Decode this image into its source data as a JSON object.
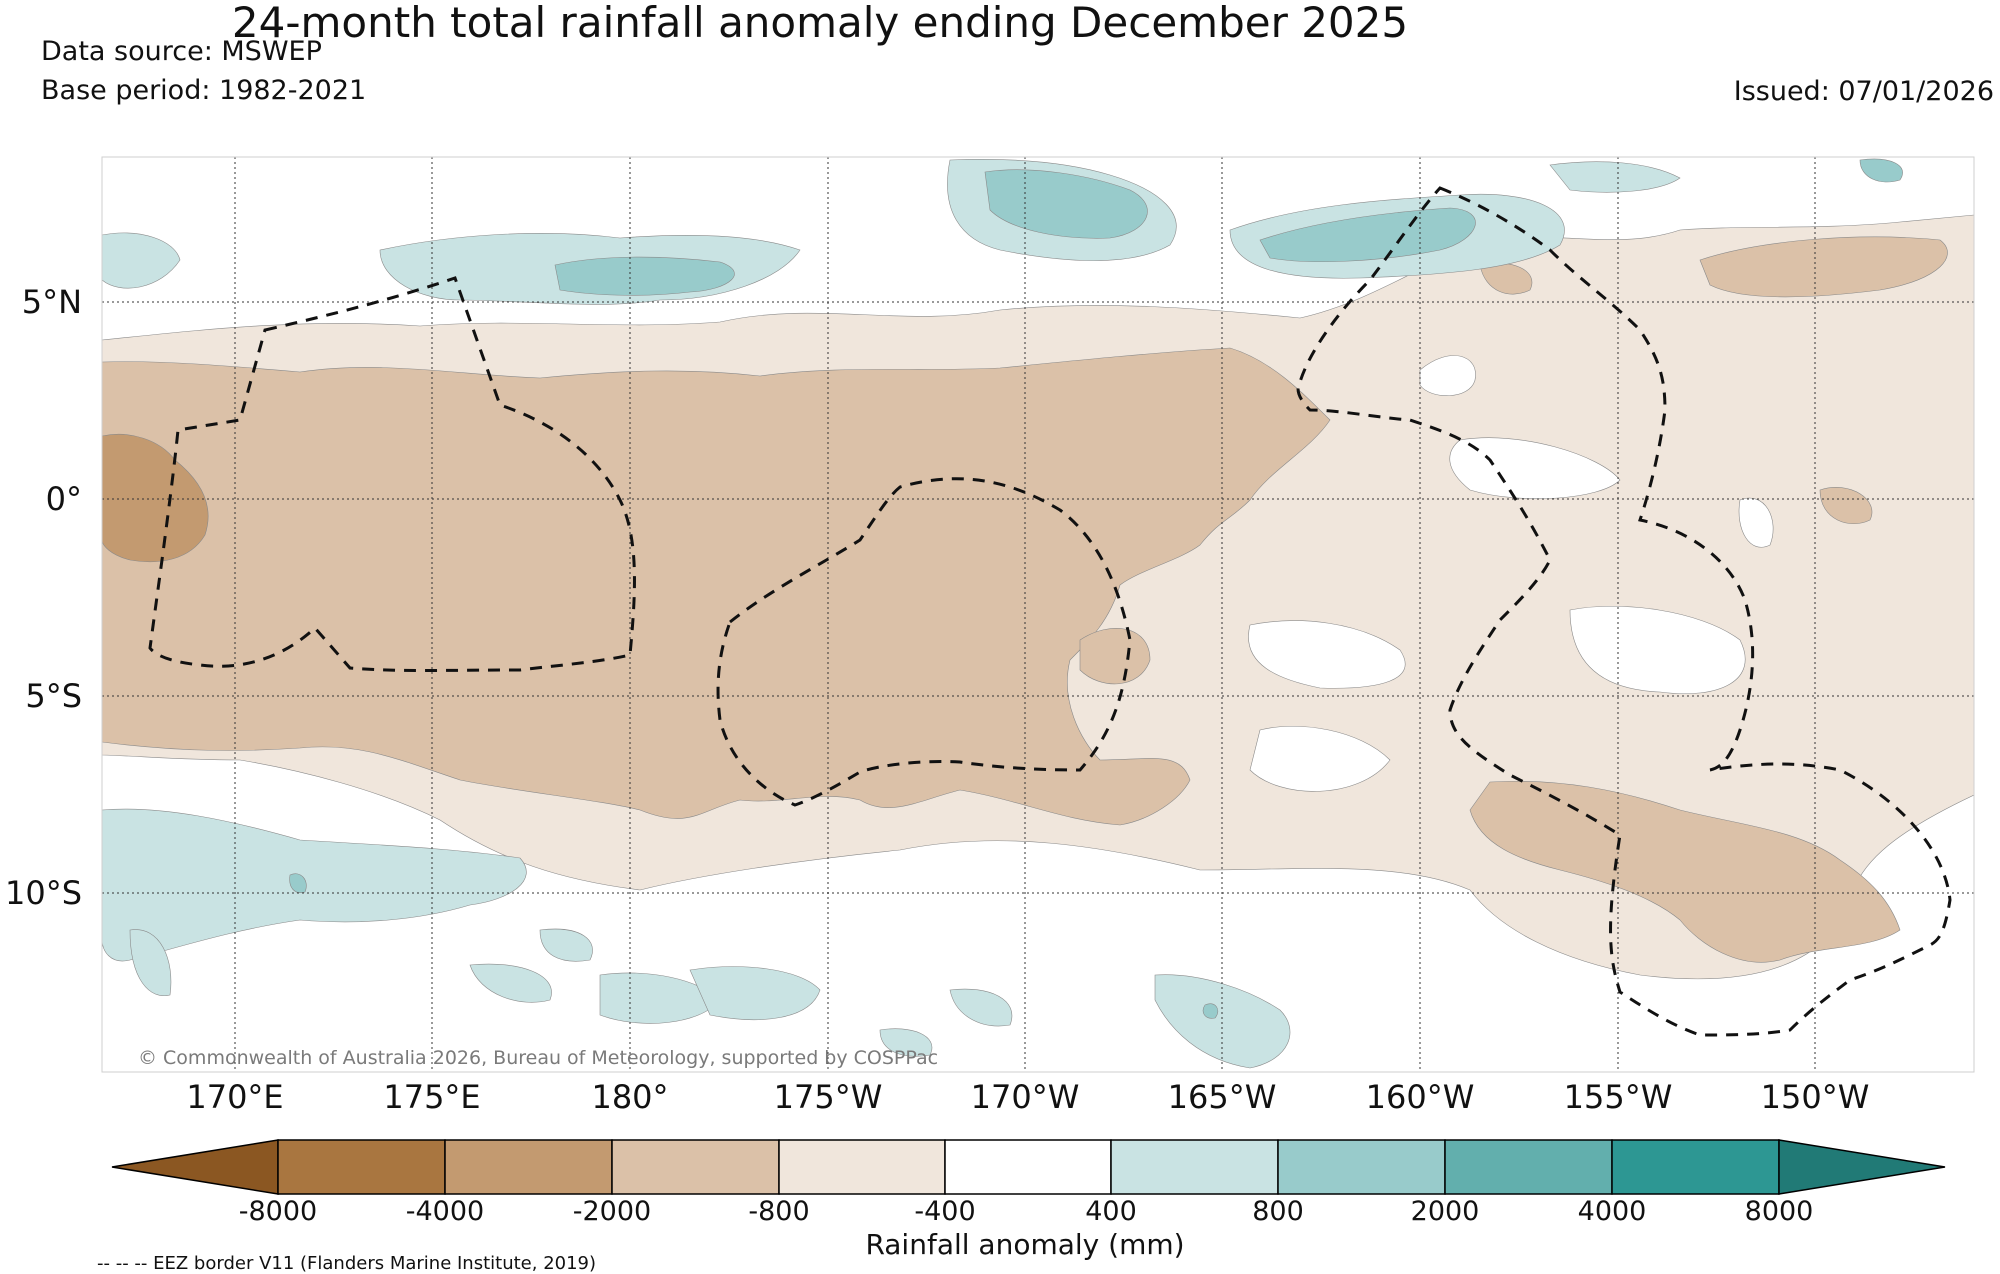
{
  "title": "24-month total rainfall anomaly ending December 2025",
  "data_source": "Data source: MSWEP",
  "base_period": "Base period: 1982-2021",
  "issued": "Issued: 07/01/2026",
  "copyright": "© Commonwealth of Australia 2026, Bureau of Meteorology, supported by COSPPac",
  "eez_note": "-- -- -- EEZ border V11 (Flanders Marine Institute, 2019)",
  "lon_ticks": [
    "170°E",
    "175°E",
    "180°",
    "175°W",
    "170°W",
    "165°W",
    "160°W",
    "155°W",
    "150°W"
  ],
  "lat_ticks": [
    "5°N",
    "0°",
    "5°S",
    "10°S"
  ],
  "colorbar": {
    "title": "Rainfall anomaly (mm)",
    "labels": [
      "-8000",
      "-4000",
      "-2000",
      "-800",
      "-400",
      "400",
      "800",
      "2000",
      "4000",
      "8000"
    ],
    "colors": [
      "#8b5722",
      "#a97640",
      "#c39a70",
      "#dbc1a8",
      "#f0e6dc",
      "#ffffff",
      "#c9e3e3",
      "#98cbcb",
      "#62afad",
      "#2d9793",
      "#217a76"
    ]
  },
  "chart_data": {
    "type": "heatmap",
    "title": "24-month total rainfall anomaly ending December 2025",
    "units": "mm",
    "lon_range": [
      "167.5°E",
      "146.5°W"
    ],
    "lat_range": [
      "8.5°N",
      "14.5°S"
    ],
    "levels": [
      -8000,
      -4000,
      -2000,
      -800,
      -400,
      400,
      800,
      2000,
      4000,
      8000
    ]
  }
}
